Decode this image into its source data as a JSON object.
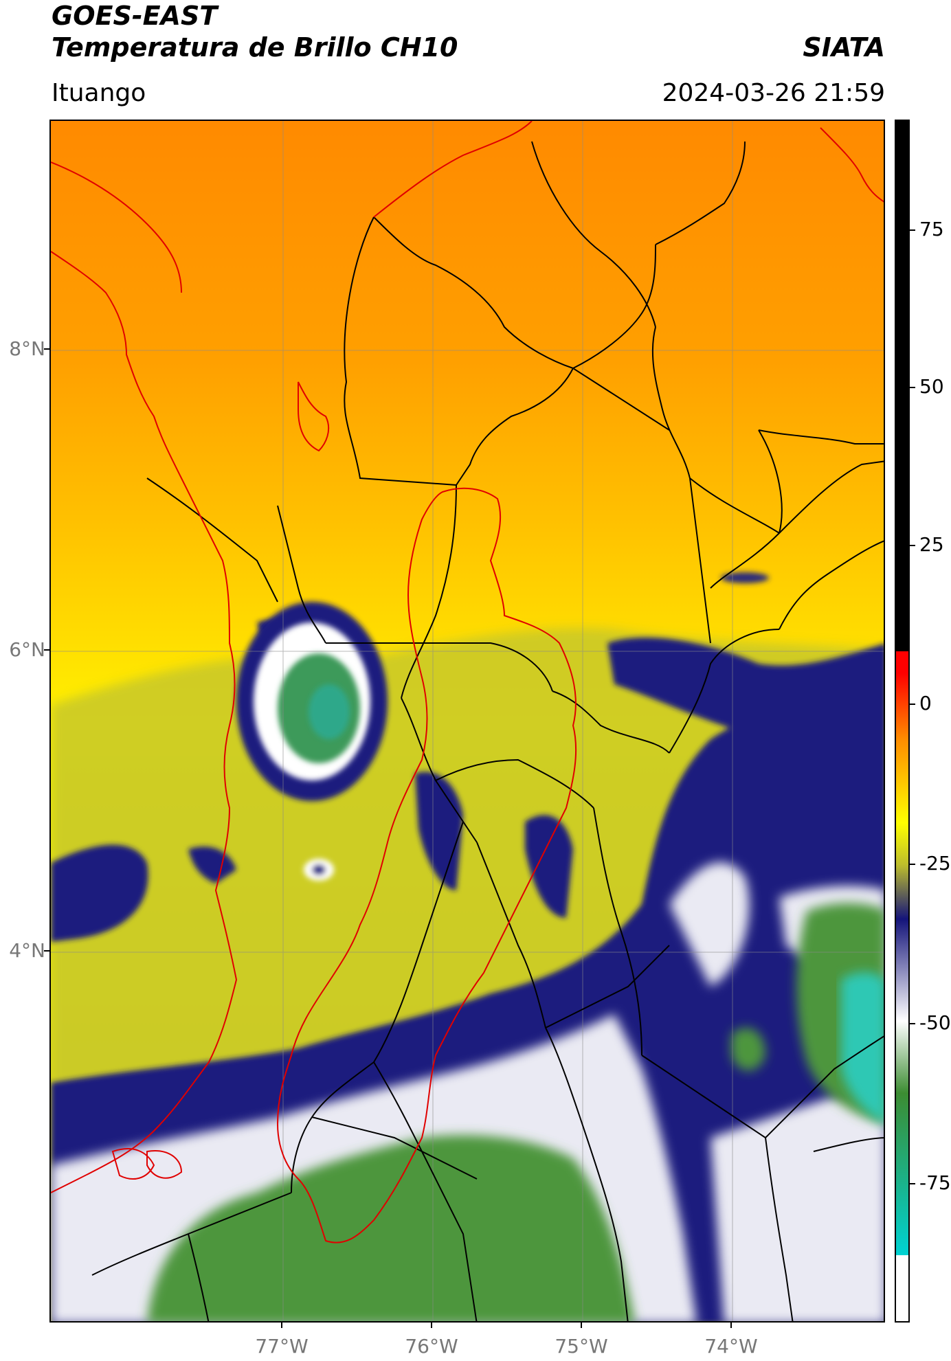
{
  "header": {
    "satellite": "GOES-EAST",
    "product": "Temperatura de Brillo CH10",
    "organization": "SIATA",
    "location": "Ituango",
    "datetime": "2024-03-26 21:59"
  },
  "map": {
    "lat_labels": [
      "8°N",
      "6°N",
      "4°N"
    ],
    "lon_labels": [
      "77°W",
      "76°W",
      "75°W",
      "74°W"
    ]
  },
  "colorbar": {
    "tick_labels": [
      "75",
      "50",
      "25",
      "0",
      "-25",
      "-50",
      "-75"
    ],
    "colors": {
      "warm": "#ff0000",
      "orange": "#ff8c00",
      "yellow": "#ffff00",
      "olive": "#bdbd2c",
      "navy": "#14147a",
      "white": "#ffffff",
      "green": "#3c8c32",
      "cyan": "#00d2d2",
      "black": "#000000"
    }
  },
  "boundaries": {
    "basin_color": "#e00000",
    "coast_color": "#e00000",
    "admin_color": "#000000"
  }
}
